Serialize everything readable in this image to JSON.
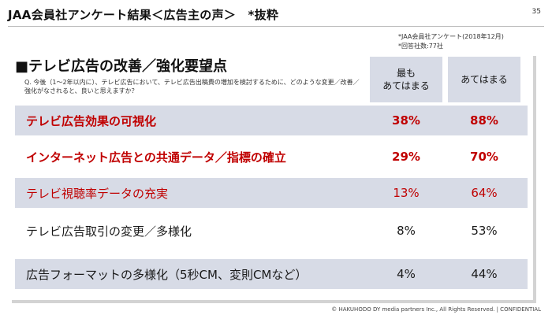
{
  "header": {
    "title": "JAA会員社アンケート結果＜広告主の声＞　*抜粋",
    "page_number": "35"
  },
  "source_note": {
    "line1": "*JAA会員社アンケート(2018年12月)",
    "line2": "*回答社数:77社"
  },
  "section": {
    "title": "■テレビ広告の改善／強化要望点",
    "question": "Q. 今後（1～2年以内に）、テレビ広告において、テレビ広告出稿費の増加を検討するために、どのような変更／改善／強化がなされると、良いと思えますか？"
  },
  "columns": {
    "col1_line1": "最も",
    "col1_line2": "あてはまる",
    "col2": "あてはまる"
  },
  "rows": [
    {
      "label": "テレビ広告効果の可視化",
      "v1": "38%",
      "v2": "88%"
    },
    {
      "label": "インターネット広告との共通データ／指標の確立",
      "v1": "29%",
      "v2": "70%"
    },
    {
      "label": "テレビ視聴率データの充実",
      "v1": "13%",
      "v2": "64%"
    },
    {
      "label": "テレビ広告取引の変更／多様化",
      "v1": "8%",
      "v2": "53%"
    },
    {
      "label": "広告フォーマットの多様化（5秒CM、変則CMなど）",
      "v1": "4%",
      "v2": "44%"
    }
  ],
  "colors": {
    "highlight_red": "#c00000",
    "row_shade": "#d7dbe6"
  },
  "footer": {
    "copyright": "© HAKUHODO DY media partners Inc., All Rights Reserved.  |  CONFIDENTIAL"
  }
}
